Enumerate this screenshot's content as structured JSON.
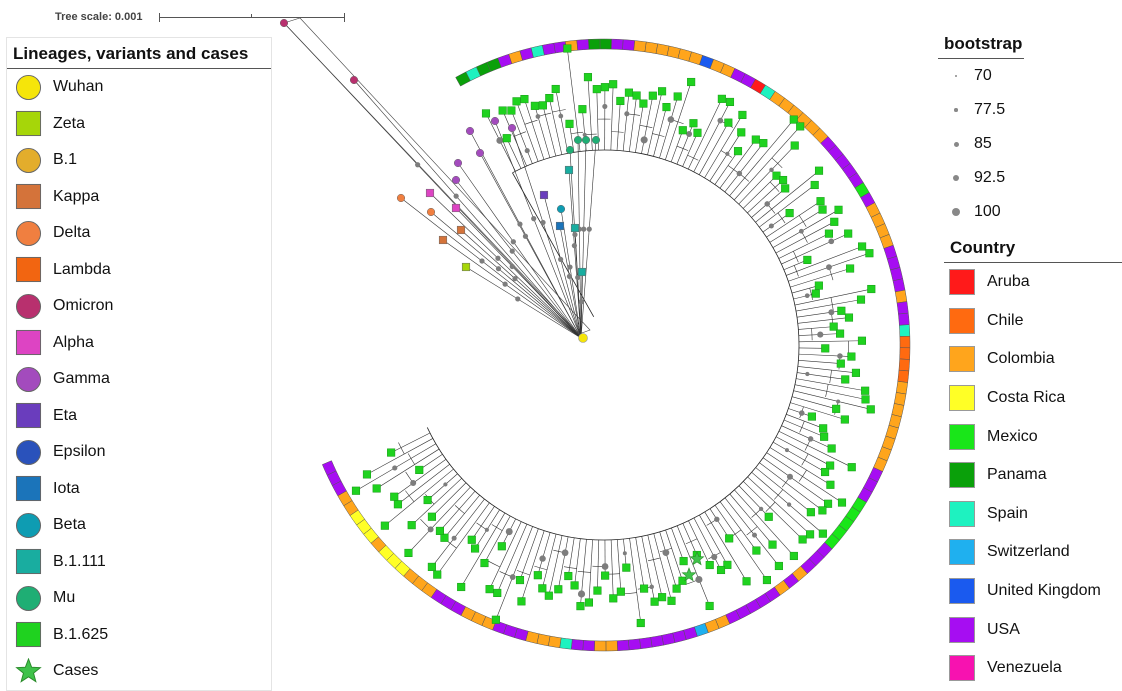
{
  "scale": {
    "label": "Tree scale: 0.001"
  },
  "lineage_legend": {
    "title": "Lineages, variants and cases",
    "items": [
      {
        "label": "Wuhan",
        "shape": "circle",
        "color": "#f5e50a"
      },
      {
        "label": "Zeta",
        "shape": "square",
        "color": "#a6d609"
      },
      {
        "label": "B.1",
        "shape": "circle",
        "color": "#e3ad2c"
      },
      {
        "label": "Kappa",
        "shape": "square",
        "color": "#d4733a"
      },
      {
        "label": "Delta",
        "shape": "circle",
        "color": "#f07f40"
      },
      {
        "label": "Lambda",
        "shape": "square",
        "color": "#f26511"
      },
      {
        "label": "Omicron",
        "shape": "circle",
        "color": "#b8306e"
      },
      {
        "label": "Alpha",
        "shape": "square",
        "color": "#dd44c3"
      },
      {
        "label": "Gamma",
        "shape": "circle",
        "color": "#a34bbd"
      },
      {
        "label": "Eta",
        "shape": "square",
        "color": "#6a3dbd"
      },
      {
        "label": "Epsilon",
        "shape": "circle",
        "color": "#2a52bb"
      },
      {
        "label": "Iota",
        "shape": "square",
        "color": "#1b74ba"
      },
      {
        "label": "Beta",
        "shape": "circle",
        "color": "#0e9cb2"
      },
      {
        "label": "B.1.111",
        "shape": "square",
        "color": "#19ada0"
      },
      {
        "label": "Mu",
        "shape": "circle",
        "color": "#1fae74"
      },
      {
        "label": "B.1.625",
        "shape": "square",
        "color": "#1fd21f"
      },
      {
        "label": "Cases",
        "shape": "star",
        "color": "#3fc24a"
      }
    ]
  },
  "bootstrap_legend": {
    "title": "bootstrap",
    "items": [
      {
        "label": "70",
        "value": 70
      },
      {
        "label": "77.5",
        "value": 77.5
      },
      {
        "label": "85",
        "value": 85
      },
      {
        "label": "92.5",
        "value": 92.5
      },
      {
        "label": "100",
        "value": 100
      }
    ]
  },
  "country_legend": {
    "title": "Country",
    "items": [
      {
        "label": "Aruba",
        "color": "#ff1a1a"
      },
      {
        "label": "Chile",
        "color": "#ff6a10"
      },
      {
        "label": "Colombia",
        "color": "#ffa51c"
      },
      {
        "label": "Costa Rica",
        "color": "#ffff26"
      },
      {
        "label": "Mexico",
        "color": "#19e619"
      },
      {
        "label": "Panama",
        "color": "#0aa00a"
      },
      {
        "label": "Spain",
        "color": "#1ef2c0"
      },
      {
        "label": "Switzerland",
        "color": "#1fb0ef"
      },
      {
        "label": "United Kingdom",
        "color": "#1a5aef"
      },
      {
        "label": "USA",
        "color": "#a60df2"
      },
      {
        "label": "Venezuela",
        "color": "#f712b0"
      }
    ]
  },
  "ring_sequence": [
    "Panama",
    "Spain",
    "Panama",
    "Panama",
    "USA",
    "Colombia",
    "USA",
    "Spain",
    "USA",
    "USA",
    "Colombia",
    "USA",
    "Panama",
    "Panama",
    "USA",
    "USA",
    "Colombia",
    "Colombia",
    "Colombia",
    "Colombia",
    "Colombia",
    "Colombia",
    "United Kingdom",
    "Colombia",
    "Colombia",
    "USA",
    "USA",
    "Aruba",
    "Spain",
    "Colombia",
    "Colombia",
    "Colombia",
    "Colombia",
    "Colombia",
    "Colombia",
    "USA",
    "USA",
    "USA",
    "USA",
    "USA",
    "Mexico",
    "USA",
    "Colombia",
    "Colombia",
    "Colombia",
    "Colombia",
    "USA",
    "USA",
    "USA",
    "USA",
    "Colombia",
    "USA",
    "USA",
    "Spain",
    "Chile",
    "Chile",
    "Chile",
    "Chile",
    "Colombia",
    "Colombia",
    "Colombia",
    "Colombia",
    "Colombia",
    "Colombia",
    "Colombia",
    "Colombia",
    "USA",
    "USA",
    "USA",
    "Mexico",
    "Mexico",
    "Mexico",
    "Mexico",
    "Mexico",
    "USA",
    "USA",
    "USA",
    "Colombia",
    "USA",
    "Colombia",
    "USA",
    "USA",
    "USA",
    "USA",
    "USA",
    "Colombia",
    "Colombia",
    "Switzerland",
    "USA",
    "USA",
    "USA",
    "USA",
    "USA",
    "USA",
    "USA",
    "Colombia",
    "Colombia",
    "USA",
    "USA",
    "Spain",
    "Colombia",
    "Colombia",
    "Colombia",
    "USA",
    "USA",
    "USA",
    "Colombia",
    "Colombia",
    "Colombia",
    "USA",
    "USA",
    "USA",
    "Colombia",
    "Colombia",
    "Colombia",
    "Costa Rica",
    "Costa Rica",
    "Costa Rica",
    "Colombia",
    "Costa Rica",
    "Costa Rica",
    "Costa Rica",
    "Colombia",
    "Colombia",
    "USA",
    "USA",
    "USA"
  ]
}
